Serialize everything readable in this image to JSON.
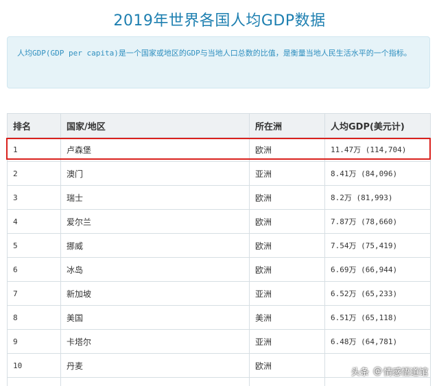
{
  "title": "2019年世界各国人均GDP数据",
  "intro": "人均GDP(GDP per capita)是一个国家或地区的GDP与当地人口总数的比值，是衡量当地人民生活水平的一个指标。",
  "table": {
    "headers": [
      "排名",
      "国家/地区",
      "所在洲",
      "人均GDP(美元计)"
    ],
    "rows": [
      {
        "rank": "1",
        "country": "卢森堡",
        "continent": "欧洲",
        "gdp": "11.47万 (114,704)"
      },
      {
        "rank": "2",
        "country": "澳门",
        "continent": "亚洲",
        "gdp": "8.41万 (84,096)"
      },
      {
        "rank": "3",
        "country": "瑞士",
        "continent": "欧洲",
        "gdp": "8.2万 (81,993)"
      },
      {
        "rank": "4",
        "country": "爱尔兰",
        "continent": "欧洲",
        "gdp": "7.87万 (78,660)"
      },
      {
        "rank": "5",
        "country": "挪威",
        "continent": "欧洲",
        "gdp": "7.54万 (75,419)"
      },
      {
        "rank": "6",
        "country": "冰岛",
        "continent": "欧洲",
        "gdp": "6.69万 (66,944)"
      },
      {
        "rank": "7",
        "country": "新加坡",
        "continent": "亚洲",
        "gdp": "6.52万 (65,233)"
      },
      {
        "rank": "8",
        "country": "美国",
        "continent": "美洲",
        "gdp": "6.51万 (65,118)"
      },
      {
        "rank": "9",
        "country": "卡塔尔",
        "continent": "亚洲",
        "gdp": "6.48万 (64,781)"
      },
      {
        "rank": "10",
        "country": "丹麦",
        "continent": "欧洲",
        "gdp": ""
      }
    ]
  },
  "watermark": {
    "platform": "头条",
    "at": "@",
    "account": "情感悟道馆"
  },
  "colors": {
    "title": "#1d7fb0",
    "intro_bg": "#e6f3f8",
    "intro_text": "#2f8fbf",
    "highlight": "#d9201c"
  }
}
